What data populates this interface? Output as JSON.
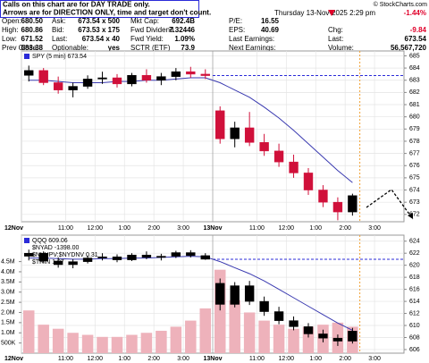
{
  "header": {
    "notes": [
      "Calls on this chart are for DAY TRADE only.",
      "Arrows are for DIRECTION ONLY, time and target don't count."
    ],
    "brand": "© StockCharts.com",
    "date": "Thursday 13-Nov-2025 2:29 pm",
    "quote": [
      [
        [
          "Open:",
          "680.50"
        ],
        [
          "Ask:",
          "673.54 x 500"
        ],
        [
          "Mkt Cap:",
          "692.4B"
        ],
        [
          "P/E:",
          "16.55"
        ]
      ],
      [
        [
          "High:",
          "680.86"
        ],
        [
          "Bid:",
          "673.53 x 175"
        ],
        [
          "Fwd Dividend",
          "7.32446"
        ],
        [
          "EPS:",
          "40.69"
        ]
      ],
      [
        [
          "Low:",
          "671.52"
        ],
        [
          "Last:",
          "673.54 x 40"
        ],
        [
          "Fwd Yield:",
          "1.09%"
        ],
        [
          "Last Earnings:"
        ]
      ],
      [
        [
          "Prev Close:",
          "683.38"
        ],
        [
          "Optionable:",
          "yes"
        ],
        [
          "SCTR (ETF)",
          "73.9"
        ],
        [
          "Next Earnings:"
        ]
      ]
    ],
    "right": [
      {
        "value": "-1.44%"
      },
      {
        "label": "Chg:",
        "value": "-9.84"
      },
      {
        "label": "Last:",
        "value": "673.54"
      },
      {
        "label": "Volume:",
        "value": "56,567,720"
      }
    ]
  },
  "chart_data": [
    {
      "type": "candlestick",
      "legend": [
        "SPY (5 min) 673.54"
      ],
      "categories": [
        "12Nov",
        null,
        null,
        "11:00",
        null,
        "12:00",
        null,
        "1:00",
        null,
        "2:00",
        null,
        "3:00",
        null,
        "13Nov",
        null,
        null,
        "11:00",
        null,
        "12:00",
        null,
        "1:00",
        null,
        "2:00",
        null,
        "3:00",
        null
      ],
      "open": [
        683.4,
        683.8,
        682.8,
        682.2,
        682.5,
        683.1,
        683.2,
        682.7,
        683.4,
        683.0,
        683.3,
        683.7,
        683.5,
        680.5,
        678.2,
        679.1,
        677.9,
        677.2,
        676.3,
        675.4,
        674.0,
        673.0,
        672.2,
        null,
        null,
        null
      ],
      "high": [
        684.2,
        684.0,
        683.3,
        682.8,
        683.4,
        683.7,
        683.5,
        683.6,
        683.9,
        683.6,
        684.0,
        684.1,
        683.9,
        680.86,
        679.6,
        680.4,
        678.6,
        677.8,
        676.9,
        675.8,
        674.4,
        673.4,
        673.7,
        null,
        null,
        null
      ],
      "low": [
        682.9,
        682.6,
        681.9,
        681.6,
        682.3,
        682.7,
        682.4,
        682.5,
        682.8,
        682.6,
        683.0,
        683.2,
        683.1,
        677.8,
        677.5,
        677.6,
        676.8,
        675.9,
        675.0,
        673.6,
        672.6,
        671.52,
        671.9,
        null,
        null,
        null
      ],
      "close": [
        683.8,
        682.8,
        682.2,
        682.5,
        683.1,
        683.2,
        682.7,
        683.4,
        683.0,
        683.3,
        683.7,
        683.5,
        683.38,
        678.2,
        679.1,
        677.9,
        677.2,
        676.3,
        675.4,
        674.0,
        673.0,
        672.2,
        673.54,
        null,
        null,
        null
      ],
      "up_color": "#000000",
      "down_color": "#d0103a",
      "ma": {
        "color": "#3a3ab0",
        "values": [
          683.0,
          683.0,
          682.9,
          682.8,
          682.8,
          682.8,
          682.9,
          682.9,
          683.0,
          683.0,
          683.1,
          683.2,
          683.2,
          682.8,
          682.2,
          681.6,
          680.8,
          679.9,
          678.9,
          677.8,
          676.7,
          675.6,
          674.6,
          null,
          null,
          null
        ]
      },
      "reference_line": {
        "value": 683.38,
        "color": "#2b2bd8"
      },
      "ylim": [
        671.4,
        685.4
      ],
      "yticks": [
        672,
        673,
        674,
        675,
        676,
        677,
        678,
        679,
        680,
        681,
        682,
        683,
        684,
        685
      ],
      "grid": true
    },
    {
      "type": "candlestick",
      "legend": [
        "QQQ 609.06",
        "$NYAD -1398.00",
        "$NYUPV:$NYDNV 0.31",
        "$TRIN 1.07"
      ],
      "categories": [
        "12Nov",
        null,
        null,
        "11:00",
        null,
        "12:00",
        null,
        "1:00",
        null,
        "2:00",
        null,
        "3:00",
        null,
        "13Nov",
        null,
        null,
        "11:00",
        null,
        "12:00",
        null,
        "1:00",
        null,
        "2:00",
        null,
        "3:00",
        null
      ],
      "open": [
        621.5,
        622.0,
        620.7,
        620.1,
        620.6,
        621.2,
        621.4,
        620.9,
        621.7,
        621.3,
        621.5,
        622.1,
        621.6,
        617.0,
        613.5,
        616.6,
        614.0,
        612.3,
        610.8,
        609.8,
        608.6,
        607.9,
        607.4,
        null,
        null,
        null
      ],
      "high": [
        622.6,
        622.3,
        621.3,
        621.0,
        621.6,
        622.0,
        621.8,
        622.0,
        622.3,
        621.9,
        622.4,
        622.5,
        622.0,
        617.8,
        617.2,
        617.4,
        614.8,
        613.1,
        611.5,
        610.4,
        609.3,
        608.5,
        609.6,
        null,
        null,
        null
      ],
      "low": [
        620.8,
        620.4,
        619.6,
        619.5,
        620.3,
        620.8,
        620.5,
        620.7,
        621.0,
        620.8,
        621.2,
        621.3,
        620.9,
        612.5,
        613.0,
        613.4,
        611.6,
        610.2,
        609.2,
        608.0,
        607.2,
        606.6,
        607.0,
        null,
        null,
        null
      ],
      "close": [
        622.0,
        620.7,
        620.1,
        620.6,
        621.2,
        621.4,
        620.9,
        621.7,
        621.3,
        621.5,
        622.1,
        621.6,
        621.0,
        613.5,
        616.6,
        614.0,
        612.3,
        610.8,
        609.8,
        608.6,
        607.9,
        607.4,
        609.06,
        null,
        null,
        null
      ],
      "up_color": "#000000",
      "down_color": "#000000",
      "ma": {
        "color": "#3a3ab0",
        "values": [
          621.2,
          621.2,
          621.1,
          621.0,
          621.0,
          621.1,
          621.1,
          621.2,
          621.2,
          621.3,
          621.4,
          621.5,
          621.4,
          620.6,
          619.6,
          618.6,
          617.4,
          616.0,
          614.6,
          613.2,
          611.8,
          610.4,
          609.2,
          null,
          null,
          null
        ]
      },
      "reference_line": {
        "value": 621.0,
        "color": "#2b2bd8"
      },
      "ylim": [
        605.4,
        625.0
      ],
      "yticks": [
        606,
        608,
        610,
        612,
        614,
        616,
        618,
        620,
        622,
        624
      ],
      "grid": true,
      "volume": {
        "color": "#eeb2bb",
        "axis": "y2",
        "values": [
          2100000,
          1400000,
          1200000,
          1000000,
          900000,
          800000,
          800000,
          900000,
          1000000,
          1100000,
          1300000,
          1600000,
          2200000,
          4100000,
          2600000,
          2000000,
          1600000,
          1400000,
          1200000,
          1300000,
          1400000,
          1500000,
          1300000,
          null,
          null,
          null
        ]
      },
      "y2lim": [
        0,
        5800000
      ],
      "y2ticks": [
        {
          "value": 500000,
          "label": "500K"
        },
        {
          "value": 1000000,
          "label": "1.0M"
        },
        {
          "value": 1500000,
          "label": "1.5M"
        },
        {
          "value": 2000000,
          "label": "2.0M"
        },
        {
          "value": 2500000,
          "label": "2.5M"
        },
        {
          "value": 3000000,
          "label": "3.0M"
        },
        {
          "value": 3500000,
          "label": "3.5M"
        },
        {
          "value": 4000000,
          "label": "4.0M"
        },
        {
          "value": 4500000,
          "label": "4.5M"
        }
      ]
    }
  ]
}
